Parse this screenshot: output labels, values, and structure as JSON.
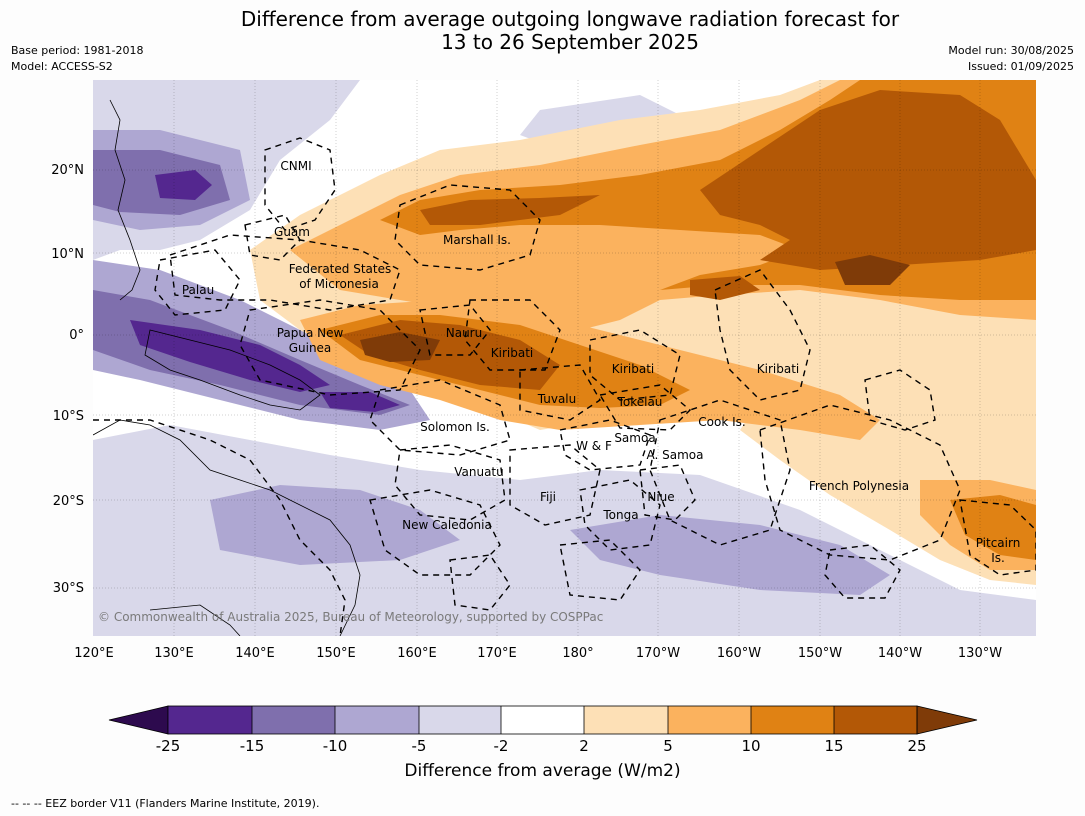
{
  "title_line1": "Difference from average outgoing longwave radiation forecast for",
  "title_line2": "13 to 26 September 2025",
  "meta_left": {
    "base_period": "Base period: 1981-2018",
    "model": "Model: ACCESS-S2"
  },
  "meta_right": {
    "model_run": "Model run: 30/08/2025",
    "issued": "Issued: 01/09/2025"
  },
  "copyright": "© Commonwealth of Australia 2025, Bureau of Meteorology, supported by COSPPac",
  "lon_ticks": [
    "120°E",
    "130°E",
    "140°E",
    "150°E",
    "160°E",
    "170°E",
    "180°",
    "170°W",
    "160°W",
    "150°W",
    "140°W",
    "130°W"
  ],
  "lat_ticks": [
    "20°N",
    "10°N",
    "0°",
    "10°S",
    "20°S",
    "30°S"
  ],
  "region_labels": {
    "cnmi": "CNMI",
    "guam": "Guam",
    "marshall": "Marshall Is.",
    "fsm1": "Federated States",
    "fsm2": "of Micronesia",
    "palau": "Palau",
    "png1": "Papua New",
    "png2": "Guinea",
    "nauru": "Nauru",
    "kiribati_w": "Kiribati",
    "kiribati_c": "Kiribati",
    "kiribati_e": "Kiribati",
    "tuvalu": "Tuvalu",
    "tokelau": "Tokelau",
    "solomon": "Solomon Is.",
    "samoa": "Samoa",
    "wf": "W & F",
    "asamoa": "A. Samoa",
    "cook": "Cook Is.",
    "vanuatu": "Vanuatu",
    "fiji": "Fiji",
    "niue": "Niue",
    "tonga": "Tonga",
    "newcal": "New Caledonia",
    "frpoly": "French Polynesia",
    "pitcairn1": "Pitcairn",
    "pitcairn2": "Is."
  },
  "colorbar": {
    "label": "Difference from average (W/m2)",
    "ticks": [
      "-25",
      "-15",
      "-10",
      "-5",
      "-2",
      "2",
      "5",
      "10",
      "15",
      "25"
    ],
    "colors": {
      "lt_minus25": "#2d0a4e",
      "m25_m15": "#54278f",
      "m15_m10": "#7f6fad",
      "m10_m5": "#aea7d2",
      "m5_m2": "#d9d8ea",
      "m2_p2": "#ffffff",
      "p2_p5": "#fde0b6",
      "p5_p10": "#fbb25e",
      "p10_p15": "#e08214",
      "p15_p25": "#b35806",
      "gt_25": "#7f3b08"
    }
  },
  "footer": "--  --  -- EEZ border V11 (Flanders Marine Institute, 2019)."
}
